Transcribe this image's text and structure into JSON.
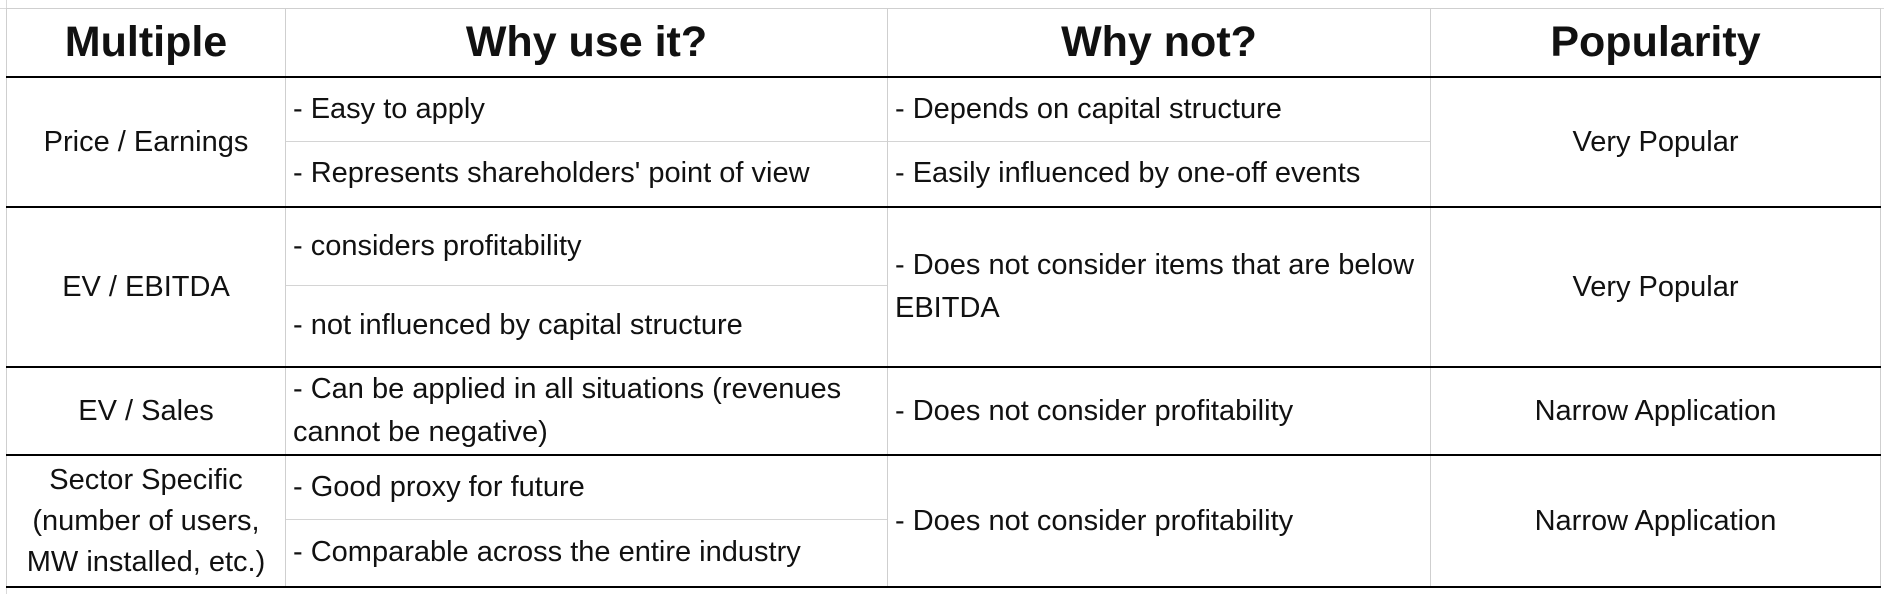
{
  "headers": [
    "Multiple",
    "Why use it?",
    "Why not?",
    "Popularity"
  ],
  "rows": [
    {
      "multiple": "Price / Earnings",
      "pros": [
        "- Easy to apply",
        "- Represents shareholders' point of view"
      ],
      "cons": [
        "- Depends on capital structure",
        "- Easily influenced by one-off events"
      ],
      "popularity": "Very Popular"
    },
    {
      "multiple": "EV / EBITDA",
      "pros": [
        "- considers profitability",
        "- not influenced by capital structure"
      ],
      "cons": [
        "- Does not consider items that are below EBITDA"
      ],
      "popularity": "Very Popular"
    },
    {
      "multiple": "EV / Sales",
      "pros": [
        "- Can be applied in all situations (revenues cannot be negative)"
      ],
      "cons": [
        "- Does not consider profitability"
      ],
      "popularity": "Narrow Application"
    },
    {
      "multiple": "Sector Specific (number of users, MW installed, etc.)",
      "pros": [
        "- Good proxy for future",
        "- Comparable across the entire industry"
      ],
      "cons": [
        "- Does not consider profitability"
      ],
      "popularity": "Narrow Application"
    }
  ]
}
